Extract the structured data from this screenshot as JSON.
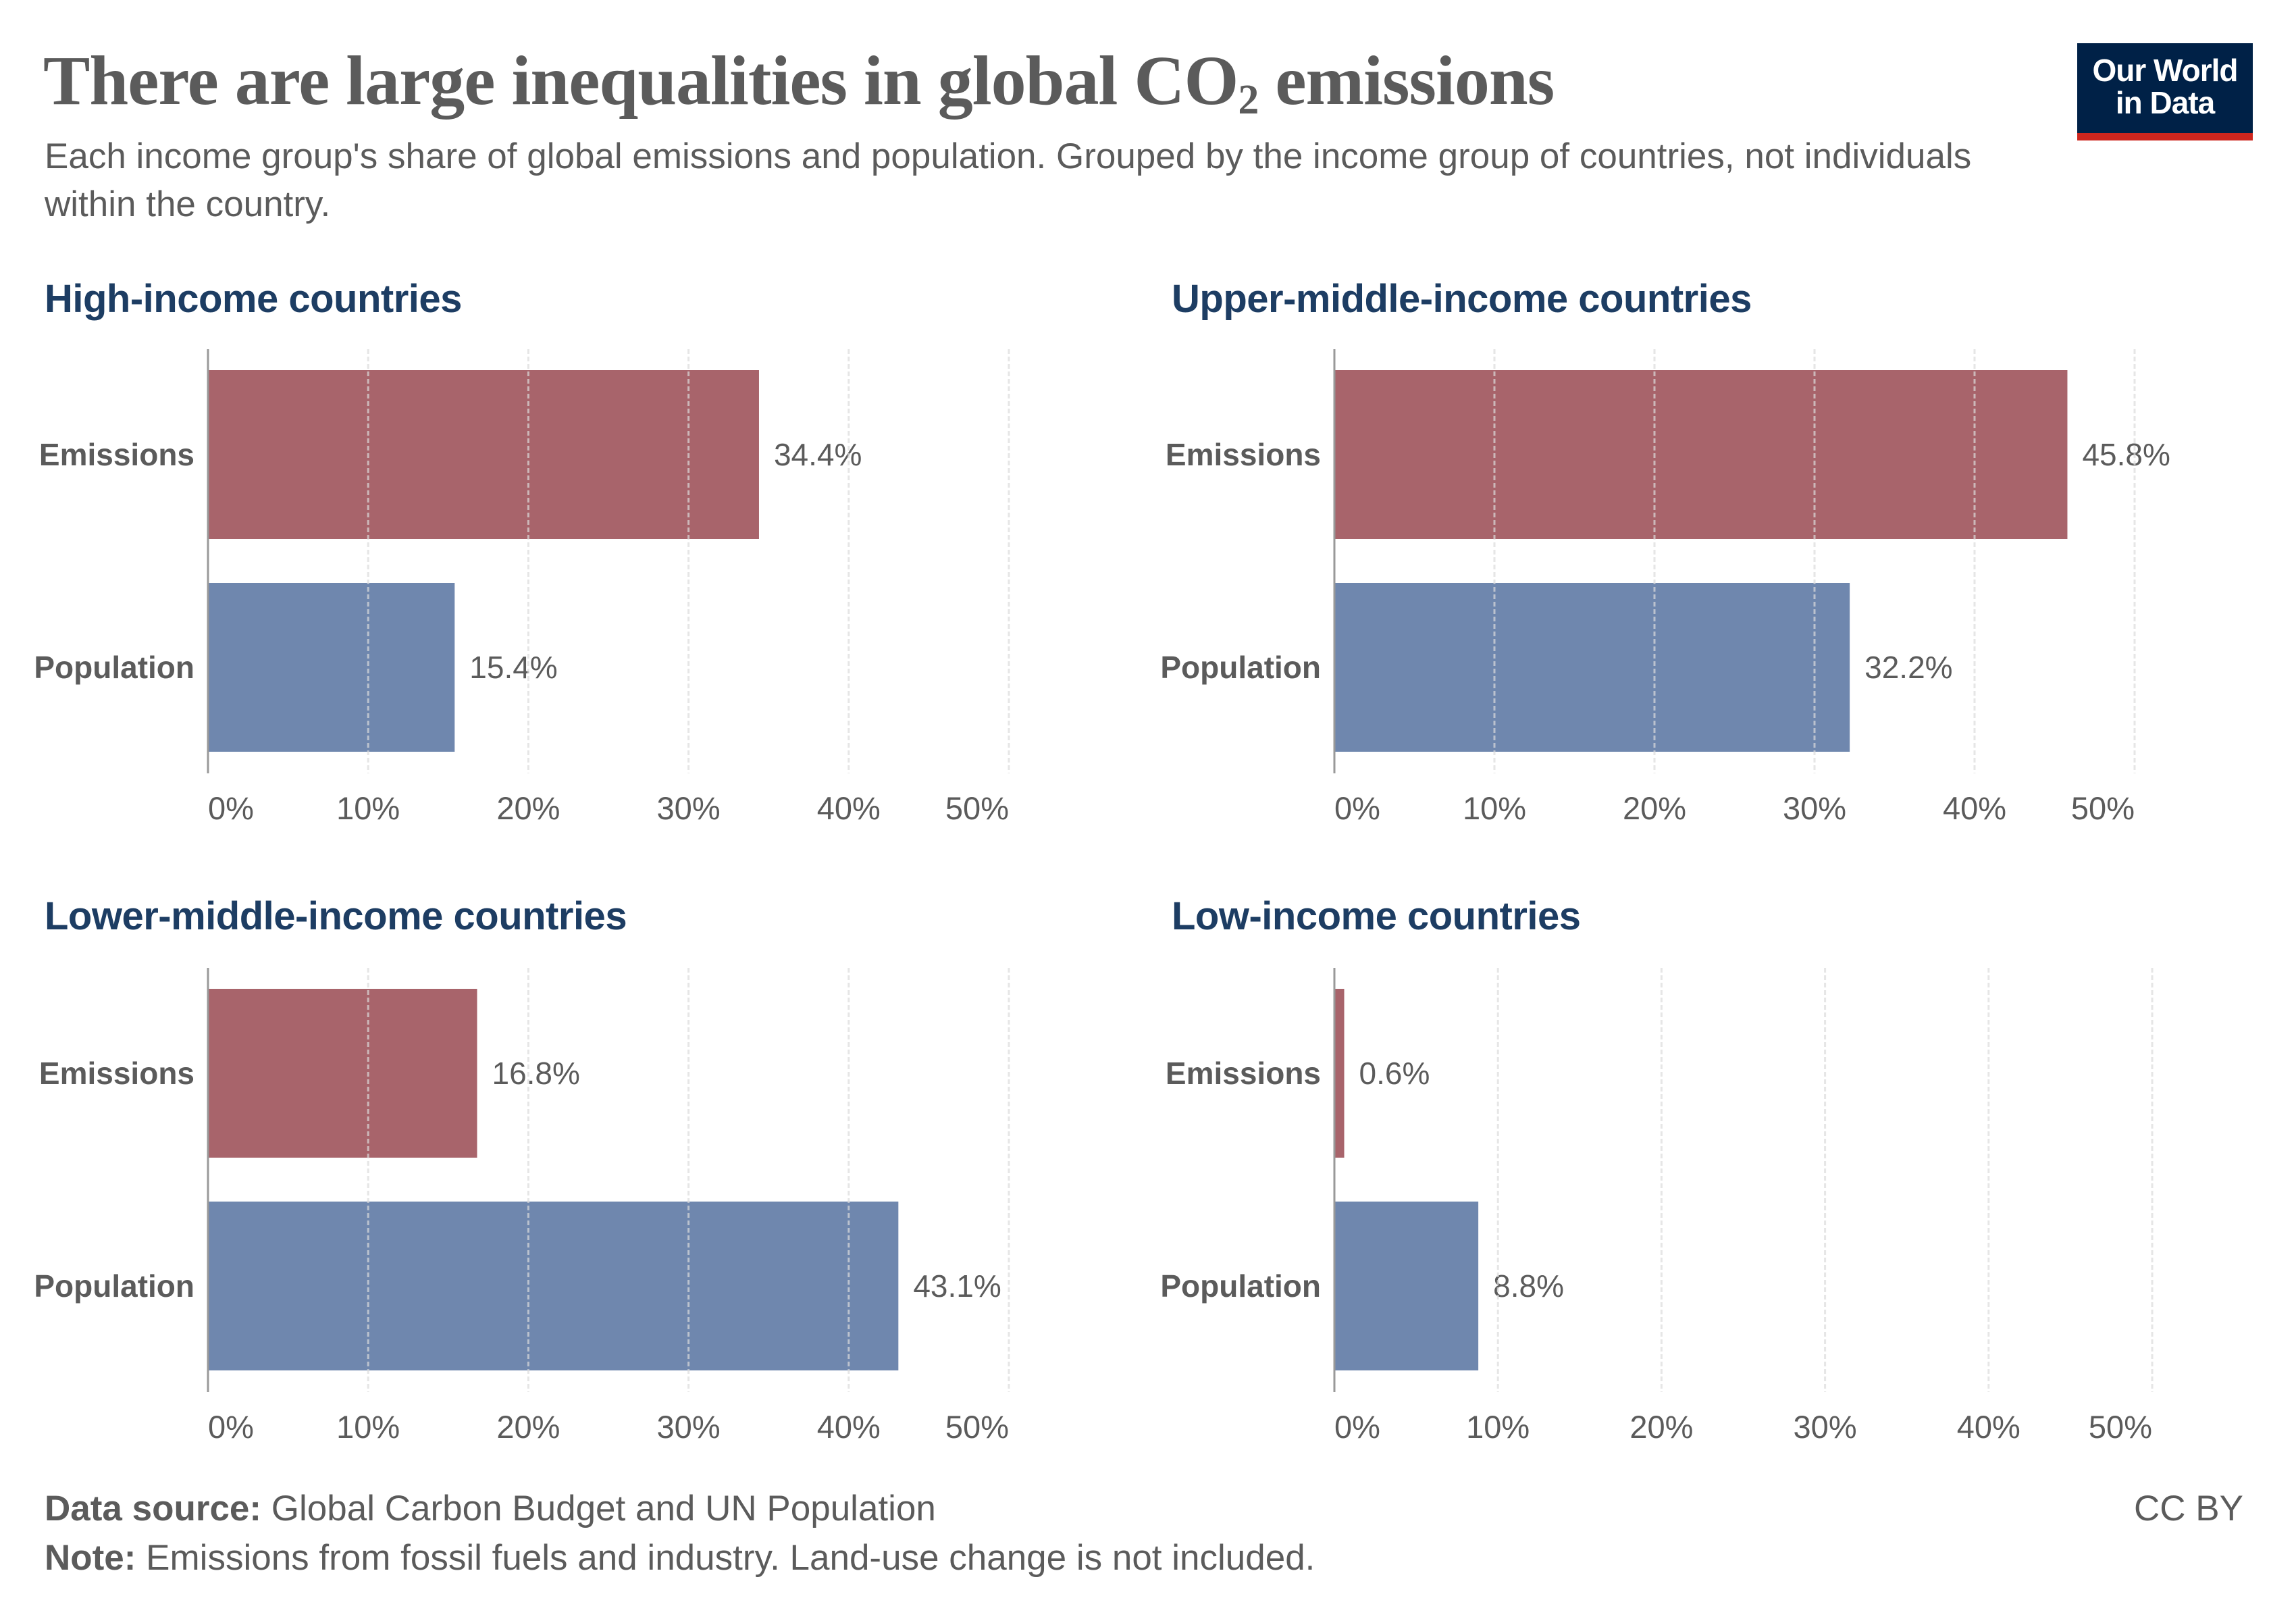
{
  "header": {
    "title_prefix": "There are large inequalities in global CO",
    "title_subscript": "2",
    "title_suffix": " emissions",
    "subtitle": "Each income group's share of global emissions and population. Grouped by the income group of countries, not individuals within the country."
  },
  "logo": {
    "line1": "Our World",
    "line2": "in Data",
    "background_color": "#002147",
    "accent_color": "#ce261e"
  },
  "colors": {
    "emissions": "#a8646b",
    "population": "#6f87ae",
    "panel_title": "#1d3d63",
    "text": "#5b5b5b",
    "axis": "#999999",
    "grid": "#dcdcdc"
  },
  "chart_data": {
    "type": "bar",
    "orientation": "horizontal",
    "title": "There are large inequalities in global CO₂ emissions",
    "subtitle": "Each income group's share of global emissions and population. Grouped by the income group of countries, not individuals within the country.",
    "categories": [
      "Emissions",
      "Population"
    ],
    "unit": "%",
    "xlim": [
      0,
      50
    ],
    "xticks": [
      0,
      10,
      20,
      30,
      40,
      50
    ],
    "xtick_labels": [
      "0%",
      "10%",
      "20%",
      "30%",
      "40%",
      "50%"
    ],
    "grid": "vertical dashed",
    "panels": [
      {
        "title": "High-income countries",
        "values": [
          34.4,
          15.4
        ],
        "labels": [
          "34.4%",
          "15.4%"
        ]
      },
      {
        "title": "Upper-middle-income countries",
        "values": [
          45.8,
          32.2
        ],
        "labels": [
          "45.8%",
          "32.2%"
        ]
      },
      {
        "title": "Lower-middle-income countries",
        "values": [
          16.8,
          43.1
        ],
        "labels": [
          "16.8%",
          "43.1%"
        ]
      },
      {
        "title": "Low-income countries",
        "values": [
          0.6,
          8.8
        ],
        "labels": [
          "0.6%",
          "8.8%"
        ]
      }
    ]
  },
  "footer": {
    "source_label": "Data source:",
    "source_text": " Global Carbon Budget and UN Population",
    "note_label": "Note:",
    "note_text": " Emissions from fossil fuels and industry. Land-use change is not included.",
    "license": "CC BY"
  }
}
